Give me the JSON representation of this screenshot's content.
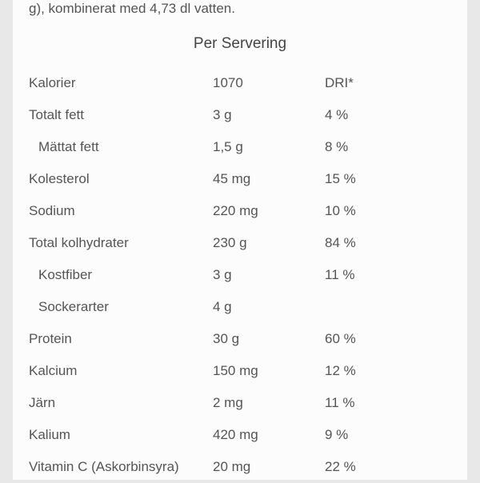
{
  "intro": "g), kombinerat med 4,73 dl vatten.",
  "header": "Per Servering",
  "dri_label": "DRI*",
  "rows": [
    {
      "label": "Kalorier",
      "value": "1070",
      "dri": "",
      "indent": false,
      "show_dri_label": true
    },
    {
      "label": "Totalt fett",
      "value": "3 g",
      "dri": "4 %",
      "indent": false
    },
    {
      "label": "Mättat fett",
      "value": "1,5 g",
      "dri": "8 %",
      "indent": true
    },
    {
      "label": "Kolesterol",
      "value": "45 mg",
      "dri": "15 %",
      "indent": false
    },
    {
      "label": "Sodium",
      "value": "220 mg",
      "dri": "10 %",
      "indent": false
    },
    {
      "label": "Total kolhydrater",
      "value": "230 g",
      "dri": "84 %",
      "indent": false
    },
    {
      "label": "Kostfiber",
      "value": "3 g",
      "dri": "11 %",
      "indent": true
    },
    {
      "label": "Sockerarter",
      "value": "4 g",
      "dri": "",
      "indent": true
    },
    {
      "label": "Protein",
      "value": "30 g",
      "dri": "60 %",
      "indent": false
    },
    {
      "label": "Kalcium",
      "value": "150 mg",
      "dri": "12 %",
      "indent": false
    },
    {
      "label": "Järn",
      "value": "2 mg",
      "dri": "11 %",
      "indent": false
    },
    {
      "label": "Kalium",
      "value": "420 mg",
      "dri": "9 %",
      "indent": false
    },
    {
      "label": "Vitamin C (Askorbinsyra)",
      "value": "20 mg",
      "dri": "22 %",
      "indent": false
    }
  ],
  "style": {
    "background_color": "#e8e8e8",
    "panel_color": "#fcfcfc",
    "text_color": "#555",
    "header_color": "#444",
    "font_size_body": 17,
    "font_size_header": 19,
    "label_col_width": 230,
    "value_col_width": 130
  }
}
